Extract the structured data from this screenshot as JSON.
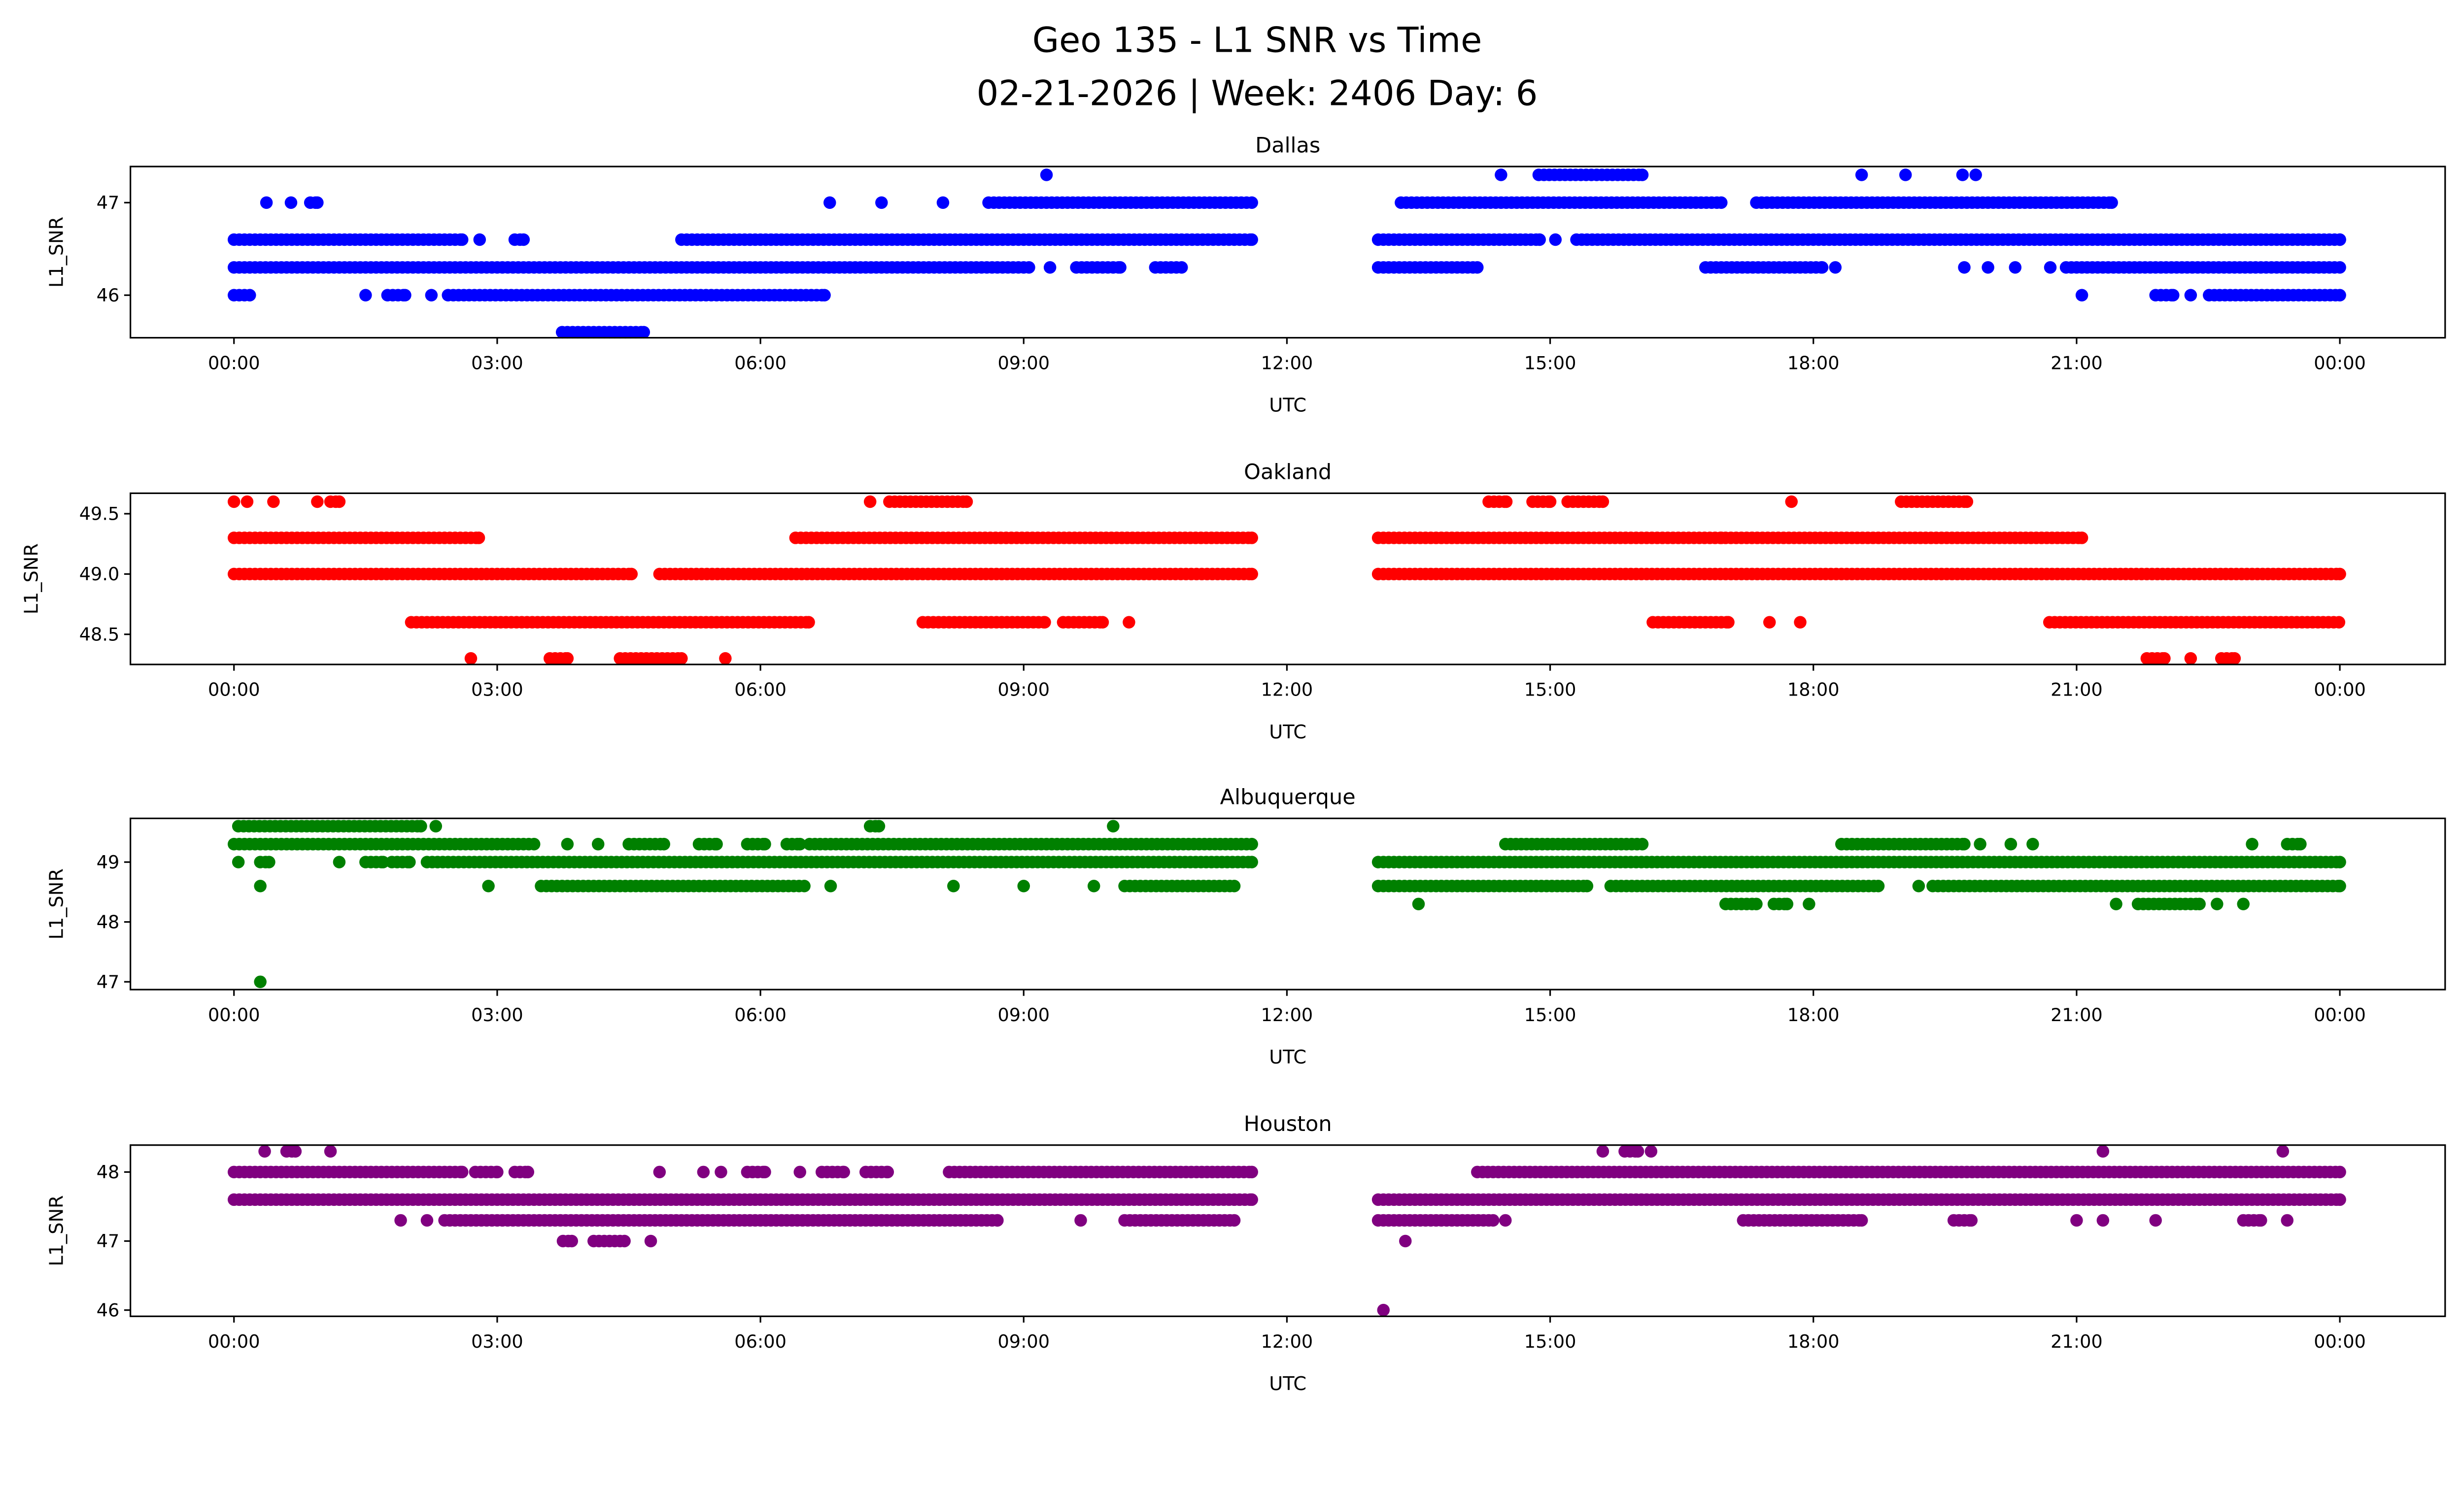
{
  "chart_data": {
    "type": "scatter",
    "title": "Geo 135 - L1 SNR vs Time",
    "subtitle": "02-21-2026 | Week: 2406 Day: 6",
    "x_ticks": [
      "00:00",
      "03:00",
      "06:00",
      "09:00",
      "12:00",
      "15:00",
      "18:00",
      "21:00",
      "00:00"
    ],
    "x_tick_hours": [
      0,
      3,
      6,
      9,
      12,
      15,
      18,
      21,
      24
    ],
    "xlim_hours": [
      -1.18,
      25.2
    ],
    "xlabel": "UTC",
    "ylabel": "L1_SNR",
    "grid": false,
    "panels": [
      {
        "title": "Dallas",
        "color": "#0000ff",
        "ylim": [
          45.54,
          47.39
        ],
        "y_ticks": [
          46,
          47
        ],
        "y_tick_labels": [
          "46",
          "47"
        ],
        "levels": [
          {
            "y": 47.3,
            "runs": [
              [
                9.26,
                9.26
              ],
              [
                14.44,
                14.44
              ],
              [
                14.87,
                16.05
              ],
              [
                18.55,
                18.55
              ],
              [
                19.05,
                19.05
              ],
              [
                19.7,
                19.7
              ],
              [
                19.85,
                19.85
              ]
            ]
          },
          {
            "y": 47.0,
            "runs": [
              [
                0.37,
                0.37
              ],
              [
                0.65,
                0.65
              ],
              [
                0.87,
                0.95
              ],
              [
                6.79,
                6.79
              ],
              [
                7.38,
                7.38
              ],
              [
                8.08,
                8.08
              ],
              [
                8.6,
                11.6
              ],
              [
                13.3,
                16.95
              ],
              [
                17.35,
                21.4
              ]
            ]
          },
          {
            "y": 46.6,
            "runs": [
              [
                0,
                2.6
              ],
              [
                2.8,
                2.8
              ],
              [
                3.2,
                3.3
              ],
              [
                5.1,
                11.6
              ],
              [
                13.04,
                14.88
              ],
              [
                15.06,
                15.06
              ],
              [
                15.3,
                24
              ]
            ]
          },
          {
            "y": 46.3,
            "runs": [
              [
                0,
                9.06
              ],
              [
                9.3,
                9.3
              ],
              [
                9.6,
                10.1
              ],
              [
                10.5,
                10.8
              ],
              [
                13.04,
                14.17
              ],
              [
                16.77,
                18.1
              ],
              [
                18.25,
                18.25
              ],
              [
                19.72,
                19.72
              ],
              [
                19.99,
                19.99
              ],
              [
                20.3,
                20.3
              ],
              [
                20.7,
                20.7
              ],
              [
                20.88,
                24
              ]
            ]
          },
          {
            "y": 46.0,
            "runs": [
              [
                0,
                0.18
              ],
              [
                1.5,
                1.5
              ],
              [
                1.75,
                1.95
              ],
              [
                2.25,
                2.25
              ],
              [
                2.44,
                6.73
              ],
              [
                21.06,
                21.06
              ],
              [
                21.9,
                22.1
              ],
              [
                22.3,
                22.3
              ],
              [
                22.51,
                24
              ]
            ]
          },
          {
            "y": 45.6,
            "runs": [
              [
                3.74,
                4.67
              ]
            ]
          }
        ]
      },
      {
        "title": "Oakland",
        "color": "#ff0000",
        "ylim": [
          48.25,
          49.67
        ],
        "y_ticks": [
          48.5,
          49.0,
          49.5
        ],
        "y_tick_labels": [
          "48.5",
          "49.0",
          "49.5"
        ],
        "levels": [
          {
            "y": 49.6,
            "runs": [
              [
                0,
                0
              ],
              [
                0.15,
                0.15
              ],
              [
                0.45,
                0.45
              ],
              [
                0.95,
                0.95
              ],
              [
                1.1,
                1.2
              ],
              [
                7.25,
                7.25
              ],
              [
                7.47,
                8.35
              ],
              [
                14.3,
                14.5
              ],
              [
                14.8,
                15.0
              ],
              [
                15.2,
                15.6
              ],
              [
                17.75,
                17.75
              ],
              [
                19.0,
                19.75
              ]
            ]
          },
          {
            "y": 49.3,
            "runs": [
              [
                0,
                2.79
              ],
              [
                6.4,
                11.6
              ],
              [
                13.04,
                16.95
              ],
              [
                17.0,
                21.06
              ]
            ]
          },
          {
            "y": 49.0,
            "runs": [
              [
                0,
                4.53
              ],
              [
                4.85,
                11.6
              ],
              [
                13.04,
                24
              ]
            ]
          },
          {
            "y": 48.6,
            "runs": [
              [
                2.02,
                6.55
              ],
              [
                7.85,
                9.24
              ],
              [
                9.45,
                9.9
              ],
              [
                10.2,
                10.2
              ],
              [
                16.17,
                17.03
              ],
              [
                17.5,
                17.5
              ],
              [
                17.85,
                17.85
              ],
              [
                20.69,
                24
              ]
            ]
          },
          {
            "y": 48.3,
            "runs": [
              [
                2.7,
                2.7
              ],
              [
                3.6,
                3.8
              ],
              [
                4.4,
                5.1
              ],
              [
                5.6,
                5.6
              ],
              [
                21.8,
                22.0
              ],
              [
                22.3,
                22.3
              ],
              [
                22.65,
                22.8
              ]
            ]
          }
        ]
      },
      {
        "title": "Albuquerque",
        "color": "#008000",
        "ylim": [
          46.87,
          49.73
        ],
        "y_ticks": [
          47,
          48,
          49
        ],
        "y_tick_labels": [
          "47",
          "48",
          "49"
        ],
        "levels": [
          {
            "y": 49.6,
            "runs": [
              [
                0.05,
                2.13
              ],
              [
                2.3,
                2.3
              ],
              [
                7.25,
                7.35
              ],
              [
                10.02,
                10.02
              ]
            ]
          },
          {
            "y": 49.3,
            "runs": [
              [
                0,
                3.42
              ],
              [
                3.8,
                3.8
              ],
              [
                4.15,
                4.15
              ],
              [
                4.5,
                4.9
              ],
              [
                5.3,
                5.5
              ],
              [
                5.85,
                6.05
              ],
              [
                6.3,
                6.45
              ],
              [
                6.56,
                11.6
              ],
              [
                14.49,
                16.05
              ],
              [
                18.32,
                19.72
              ],
              [
                19.9,
                19.9
              ],
              [
                20.25,
                20.25
              ],
              [
                20.5,
                20.5
              ],
              [
                23.0,
                23.0
              ],
              [
                23.4,
                23.55
              ]
            ]
          },
          {
            "y": 49.0,
            "runs": [
              [
                0.05,
                0.05
              ],
              [
                0.3,
                0.4
              ],
              [
                1.2,
                1.2
              ],
              [
                1.5,
                1.7
              ],
              [
                1.8,
                2.0
              ],
              [
                2.2,
                11.6
              ],
              [
                13.04,
                24
              ]
            ]
          },
          {
            "y": 48.6,
            "runs": [
              [
                0.3,
                0.3
              ],
              [
                2.9,
                2.9
              ],
              [
                3.5,
                6.5
              ],
              [
                6.8,
                6.8
              ],
              [
                8.2,
                8.2
              ],
              [
                9.0,
                9.0
              ],
              [
                9.8,
                9.8
              ],
              [
                10.15,
                11.4
              ],
              [
                13.04,
                15.42
              ],
              [
                15.69,
                18.74
              ],
              [
                19.2,
                19.2
              ],
              [
                19.36,
                24
              ]
            ]
          },
          {
            "y": 48.3,
            "runs": [
              [
                13.5,
                13.5
              ],
              [
                17.0,
                17.35
              ],
              [
                17.55,
                17.7
              ],
              [
                17.95,
                17.95
              ],
              [
                21.45,
                21.45
              ],
              [
                21.7,
                22.4
              ],
              [
                22.6,
                22.6
              ],
              [
                22.9,
                22.9
              ]
            ]
          },
          {
            "y": 47.0,
            "runs": [
              [
                0.3,
                0.3
              ]
            ]
          }
        ]
      },
      {
        "title": "Houston",
        "color": "#800080",
        "ylim": [
          45.91,
          48.39
        ],
        "y_ticks": [
          46,
          47,
          48
        ],
        "y_tick_labels": [
          "46",
          "47",
          "48"
        ],
        "levels": [
          {
            "y": 48.3,
            "runs": [
              [
                0.35,
                0.35
              ],
              [
                0.6,
                0.7
              ],
              [
                1.1,
                1.1
              ],
              [
                15.6,
                15.6
              ],
              [
                15.85,
                16.0
              ],
              [
                16.15,
                16.15
              ],
              [
                21.3,
                21.3
              ],
              [
                23.35,
                23.35
              ]
            ]
          },
          {
            "y": 48.0,
            "runs": [
              [
                0,
                2.6
              ],
              [
                2.75,
                3.0
              ],
              [
                3.2,
                3.35
              ],
              [
                4.85,
                4.85
              ],
              [
                5.35,
                5.35
              ],
              [
                5.55,
                5.55
              ],
              [
                5.85,
                6.05
              ],
              [
                6.45,
                6.45
              ],
              [
                6.7,
                6.95
              ],
              [
                7.2,
                7.45
              ],
              [
                8.15,
                11.6
              ],
              [
                14.17,
                24
              ]
            ]
          },
          {
            "y": 47.6,
            "runs": [
              [
                0,
                11.6
              ],
              [
                13.04,
                24
              ]
            ]
          },
          {
            "y": 47.3,
            "runs": [
              [
                1.9,
                1.9
              ],
              [
                2.2,
                2.2
              ],
              [
                2.4,
                8.7
              ],
              [
                9.65,
                9.65
              ],
              [
                10.15,
                11.4
              ],
              [
                13.04,
                14.35
              ],
              [
                14.49,
                14.49
              ],
              [
                17.2,
                18.55
              ],
              [
                19.6,
                19.8
              ],
              [
                21.0,
                21.0
              ],
              [
                21.3,
                21.3
              ],
              [
                21.9,
                21.9
              ],
              [
                22.9,
                23.1
              ],
              [
                23.4,
                23.4
              ]
            ]
          },
          {
            "y": 47.0,
            "runs": [
              [
                3.75,
                3.85
              ],
              [
                4.1,
                4.45
              ],
              [
                4.75,
                4.75
              ],
              [
                13.35,
                13.35
              ]
            ]
          },
          {
            "y": 46.0,
            "runs": [
              [
                13.1,
                13.1
              ]
            ]
          }
        ]
      }
    ]
  }
}
